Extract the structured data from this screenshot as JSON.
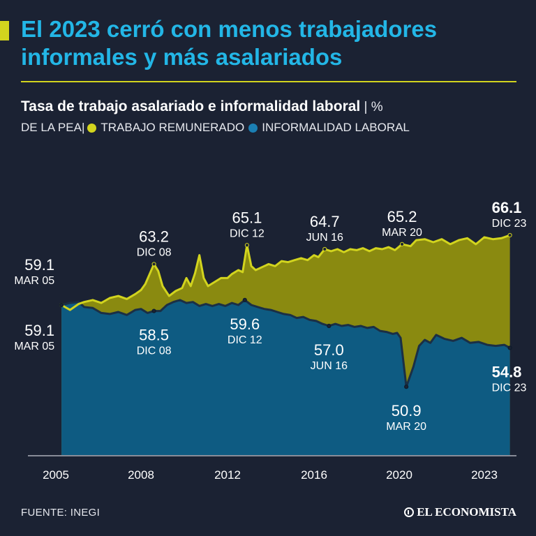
{
  "header": {
    "title": "El 2023 cerró con menos trabajadores informales y más asalariados",
    "subtitle": "Tasa de trabajo asalariado e informalidad laboral",
    "unit": " | % ",
    "unit_line2": "DE LA PEA",
    "sep": " | "
  },
  "colors": {
    "background": "#1b2233",
    "salaried_fill": "#8a8a10",
    "salaried_line": "#d2d41e",
    "informal_fill": "#0e5b82",
    "informal_line": "#1b2f45",
    "title": "#23b6e6"
  },
  "footer": {
    "source": "FUENTE: INEGI",
    "brand": "EL ECONOMISTA"
  },
  "chart_data": {
    "type": "area",
    "ylim": [
      48,
      70
    ],
    "x_ticks": [
      "2005",
      "2008",
      "2012",
      "2016",
      "2020",
      "2023"
    ],
    "series": [
      {
        "name": "TRABAJO REMUNERADO",
        "color": "#d2d41e",
        "points": [
          [
            2005.2,
            59.1
          ],
          [
            2005.5,
            58.6
          ],
          [
            2005.8,
            59.2
          ],
          [
            2006.0,
            59.4
          ],
          [
            2006.3,
            59.6
          ],
          [
            2006.6,
            59.3
          ],
          [
            2006.9,
            59.8
          ],
          [
            2007.2,
            60.0
          ],
          [
            2007.5,
            59.7
          ],
          [
            2007.8,
            60.2
          ],
          [
            2008.0,
            60.6
          ],
          [
            2008.2,
            61.2
          ],
          [
            2008.4,
            62.2
          ],
          [
            2008.6,
            63.2
          ],
          [
            2008.8,
            62.5
          ],
          [
            2009.0,
            61.0
          ],
          [
            2009.3,
            60.0
          ],
          [
            2009.6,
            60.5
          ],
          [
            2009.9,
            60.8
          ],
          [
            2010.1,
            61.8
          ],
          [
            2010.3,
            61.0
          ],
          [
            2010.5,
            62.3
          ],
          [
            2010.7,
            64.1
          ],
          [
            2010.9,
            61.8
          ],
          [
            2011.1,
            61.0
          ],
          [
            2011.4,
            61.4
          ],
          [
            2011.7,
            61.8
          ],
          [
            2012.0,
            61.8
          ],
          [
            2012.2,
            62.2
          ],
          [
            2012.5,
            62.6
          ],
          [
            2012.7,
            62.4
          ],
          [
            2012.9,
            65.1
          ],
          [
            2013.1,
            63.0
          ],
          [
            2013.3,
            62.6
          ],
          [
            2013.6,
            62.9
          ],
          [
            2013.9,
            63.2
          ],
          [
            2014.2,
            63.0
          ],
          [
            2014.5,
            63.5
          ],
          [
            2014.8,
            63.4
          ],
          [
            2015.1,
            63.6
          ],
          [
            2015.4,
            63.8
          ],
          [
            2015.7,
            63.6
          ],
          [
            2016.0,
            64.1
          ],
          [
            2016.2,
            63.9
          ],
          [
            2016.5,
            64.7
          ],
          [
            2016.8,
            64.5
          ],
          [
            2017.1,
            64.7
          ],
          [
            2017.4,
            64.4
          ],
          [
            2017.7,
            64.7
          ],
          [
            2018.0,
            64.6
          ],
          [
            2018.3,
            64.8
          ],
          [
            2018.6,
            64.5
          ],
          [
            2018.9,
            64.8
          ],
          [
            2019.2,
            64.7
          ],
          [
            2019.5,
            64.9
          ],
          [
            2019.8,
            64.6
          ],
          [
            2020.1,
            65.2
          ],
          [
            2020.4,
            65.0
          ],
          [
            2020.6,
            65.6
          ],
          [
            2020.9,
            65.7
          ],
          [
            2021.2,
            65.4
          ],
          [
            2021.5,
            65.7
          ],
          [
            2021.8,
            65.2
          ],
          [
            2022.1,
            65.6
          ],
          [
            2022.4,
            65.8
          ],
          [
            2022.7,
            65.2
          ],
          [
            2023.0,
            65.9
          ],
          [
            2023.3,
            65.7
          ],
          [
            2023.6,
            65.8
          ],
          [
            2023.9,
            66.1
          ]
        ]
      },
      {
        "name": "INFORMALIDAD LABORAL",
        "color": "#0e5b82",
        "points": [
          [
            2005.2,
            59.1
          ],
          [
            2005.5,
            59.3
          ],
          [
            2005.8,
            59.4
          ],
          [
            2006.0,
            58.9
          ],
          [
            2006.3,
            58.8
          ],
          [
            2006.6,
            58.3
          ],
          [
            2006.9,
            58.2
          ],
          [
            2007.2,
            58.4
          ],
          [
            2007.5,
            58.1
          ],
          [
            2007.8,
            58.6
          ],
          [
            2008.0,
            58.7
          ],
          [
            2008.3,
            58.3
          ],
          [
            2008.6,
            58.5
          ],
          [
            2008.9,
            58.5
          ],
          [
            2009.2,
            59.1
          ],
          [
            2009.5,
            59.4
          ],
          [
            2009.8,
            59.6
          ],
          [
            2010.1,
            59.3
          ],
          [
            2010.4,
            59.4
          ],
          [
            2010.7,
            59.0
          ],
          [
            2011.0,
            59.2
          ],
          [
            2011.3,
            59.0
          ],
          [
            2011.6,
            59.2
          ],
          [
            2011.9,
            59.0
          ],
          [
            2012.2,
            59.3
          ],
          [
            2012.5,
            59.1
          ],
          [
            2012.8,
            59.6
          ],
          [
            2013.1,
            59.1
          ],
          [
            2013.4,
            58.9
          ],
          [
            2013.7,
            58.7
          ],
          [
            2014.0,
            58.6
          ],
          [
            2014.3,
            58.4
          ],
          [
            2014.6,
            58.2
          ],
          [
            2014.9,
            58.1
          ],
          [
            2015.2,
            57.8
          ],
          [
            2015.5,
            57.9
          ],
          [
            2015.8,
            57.6
          ],
          [
            2016.1,
            57.5
          ],
          [
            2016.4,
            57.2
          ],
          [
            2016.7,
            57.0
          ],
          [
            2017.0,
            57.2
          ],
          [
            2017.3,
            57.0
          ],
          [
            2017.6,
            57.1
          ],
          [
            2017.9,
            56.9
          ],
          [
            2018.2,
            57.0
          ],
          [
            2018.5,
            56.8
          ],
          [
            2018.8,
            56.9
          ],
          [
            2019.1,
            56.5
          ],
          [
            2019.4,
            56.4
          ],
          [
            2019.7,
            56.2
          ],
          [
            2019.9,
            56.3
          ],
          [
            2020.05,
            55.8
          ],
          [
            2020.25,
            50.9
          ],
          [
            2020.5,
            52.9
          ],
          [
            2020.7,
            55.0
          ],
          [
            2020.9,
            55.6
          ],
          [
            2021.1,
            55.3
          ],
          [
            2021.3,
            56.1
          ],
          [
            2021.6,
            55.7
          ],
          [
            2021.9,
            55.5
          ],
          [
            2022.2,
            55.8
          ],
          [
            2022.5,
            55.3
          ],
          [
            2022.8,
            55.4
          ],
          [
            2023.1,
            55.1
          ],
          [
            2023.4,
            55.0
          ],
          [
            2023.7,
            55.1
          ],
          [
            2023.9,
            54.8
          ]
        ]
      }
    ],
    "annotations": [
      {
        "series": 0,
        "x": 2005.2,
        "y": 59.1,
        "value": "59.1",
        "date": "MAR 05",
        "pos": "left-above",
        "bold": false
      },
      {
        "series": 0,
        "x": 2008.6,
        "y": 63.2,
        "value": "63.2",
        "date": "DIC 08",
        "pos": "above",
        "bold": false
      },
      {
        "series": 0,
        "x": 2012.9,
        "y": 65.1,
        "value": "65.1",
        "date": "DIC 12",
        "pos": "above",
        "bold": false
      },
      {
        "series": 0,
        "x": 2016.5,
        "y": 64.7,
        "value": "64.7",
        "date": "JUN 16",
        "pos": "above",
        "bold": false
      },
      {
        "series": 0,
        "x": 2020.1,
        "y": 65.2,
        "value": "65.2",
        "date": "MAR 20",
        "pos": "above",
        "bold": false
      },
      {
        "series": 0,
        "x": 2023.9,
        "y": 66.1,
        "value": "66.1",
        "date": "DIC 23",
        "pos": "above",
        "bold": true
      },
      {
        "series": 1,
        "x": 2005.2,
        "y": 59.1,
        "value": "59.1",
        "date": "MAR 05",
        "pos": "left-below",
        "bold": false
      },
      {
        "series": 1,
        "x": 2008.6,
        "y": 58.5,
        "value": "58.5",
        "date": "DIC 08",
        "pos": "below",
        "bold": false
      },
      {
        "series": 1,
        "x": 2012.8,
        "y": 59.6,
        "value": "59.6",
        "date": "DIC 12",
        "pos": "below",
        "bold": false
      },
      {
        "series": 1,
        "x": 2016.7,
        "y": 57.0,
        "value": "57.0",
        "date": "JUN 16",
        "pos": "below",
        "bold": false
      },
      {
        "series": 1,
        "x": 2020.25,
        "y": 50.9,
        "value": "50.9",
        "date": "MAR 20",
        "pos": "below",
        "bold": false
      },
      {
        "series": 1,
        "x": 2023.9,
        "y": 54.8,
        "value": "54.8",
        "date": "DIC 23",
        "pos": "below",
        "bold": true
      }
    ]
  }
}
